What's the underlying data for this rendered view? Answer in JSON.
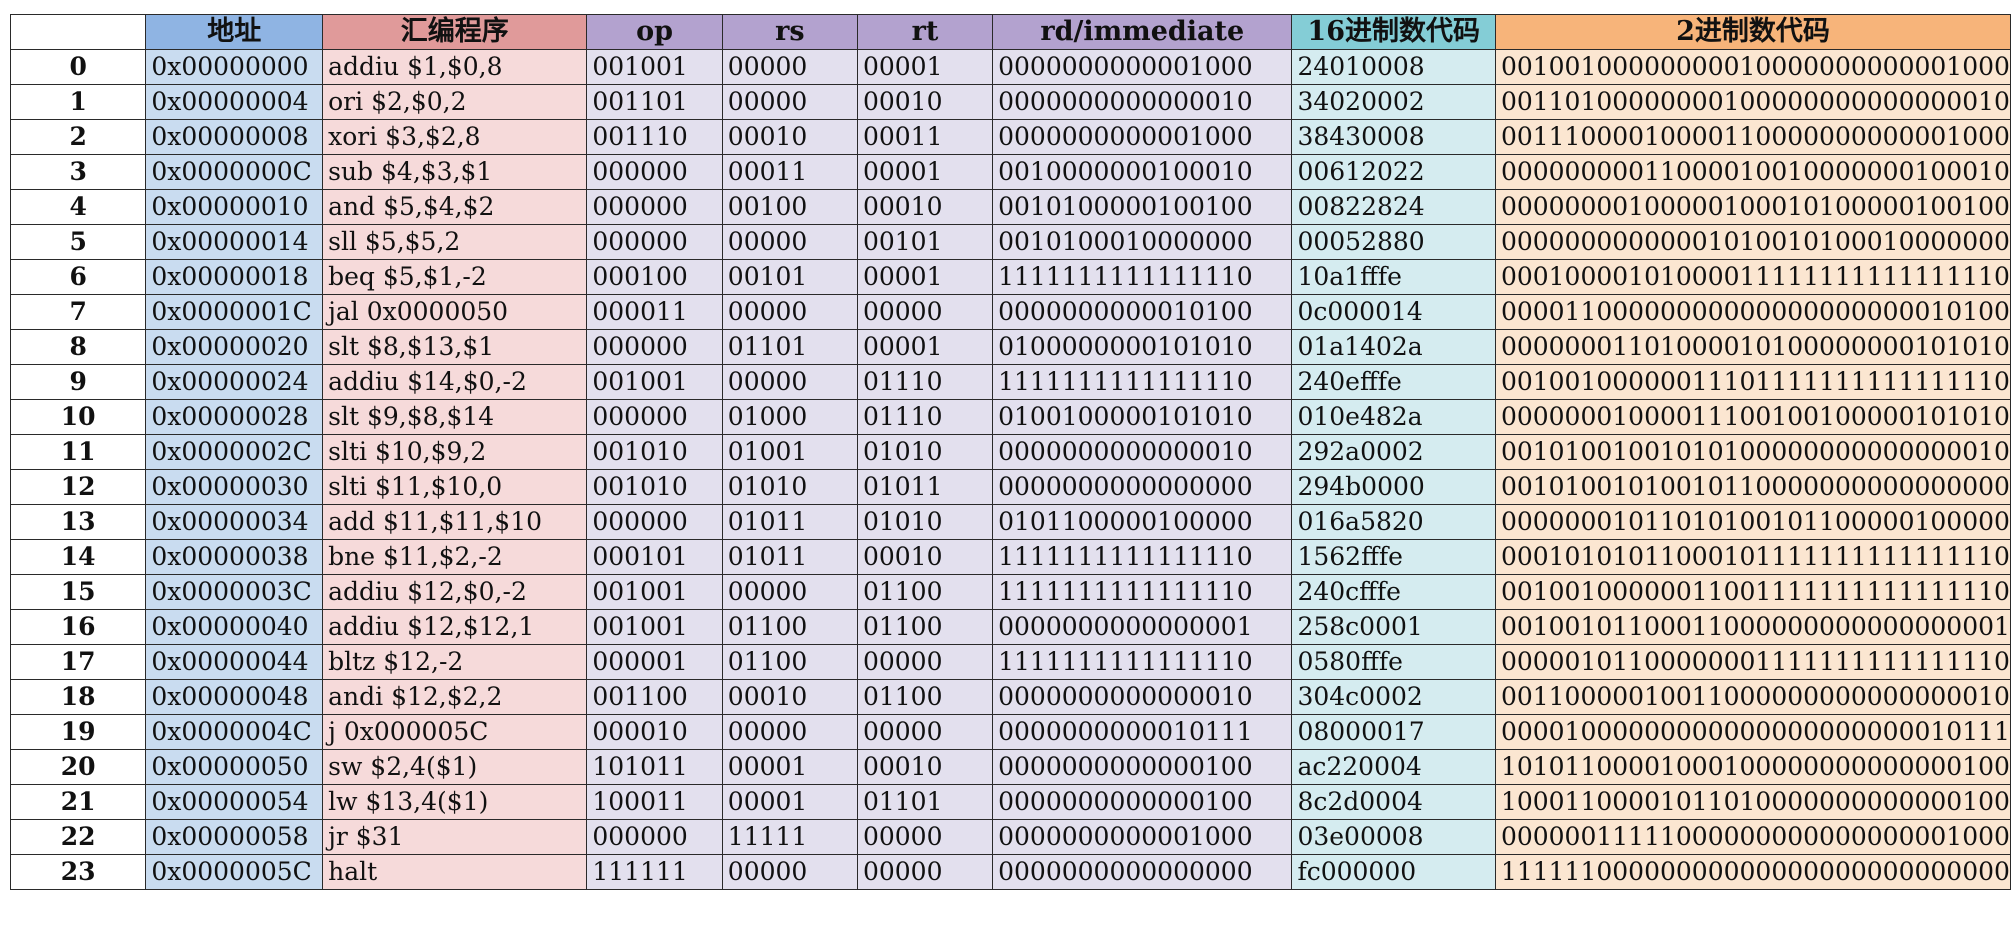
{
  "headers": {
    "index": "",
    "address": "地址",
    "assembly": "汇编程序",
    "op": "op",
    "rs": "rs",
    "rt": "rt",
    "rd_immediate": "rd/immediate",
    "hex_code": "16进制数代码",
    "bin_code": "2进制数代码"
  },
  "colors": {
    "address_header": "#8fb4e3",
    "assembly_header": "#e09a9a",
    "field_header": "#b3a2cf",
    "hex_header": "#84cdd6",
    "bin_header": "#f7b47a"
  },
  "rows": [
    {
      "idx": "0",
      "addr": "0x00000000",
      "asm": "addiu  $1,$0,8",
      "op": "001001",
      "rs": "00000",
      "rt": "00001",
      "imm": "0000000000001000",
      "hex": "24010008",
      "bin": "00100100000000010000000000001000"
    },
    {
      "idx": "1",
      "addr": "0x00000004",
      "asm": "ori  $2,$0,2",
      "op": "001101",
      "rs": "00000",
      "rt": "00010",
      "imm": "0000000000000010",
      "hex": "34020002",
      "bin": "00110100000000100000000000000010"
    },
    {
      "idx": "2",
      "addr": "0x00000008",
      "asm": "xori  $3,$2,8",
      "op": "001110",
      "rs": "00010",
      "rt": "00011",
      "imm": "0000000000001000",
      "hex": "38430008",
      "bin": "00111000010000110000000000001000"
    },
    {
      "idx": "3",
      "addr": "0x0000000C",
      "asm": "sub  $4,$3,$1",
      "op": "000000",
      "rs": "00011",
      "rt": "00001",
      "imm": "0010000000100010",
      "hex": "00612022",
      "bin": "00000000011000010010000000100010"
    },
    {
      "idx": "4",
      "addr": "0x00000010",
      "asm": "and  $5,$4,$2",
      "op": "000000",
      "rs": "00100",
      "rt": "00010",
      "imm": "0010100000100100",
      "hex": "00822824",
      "bin": "00000000100000100010100000100100"
    },
    {
      "idx": "5",
      "addr": "0x00000014",
      "asm": "sll   $5,$5,2",
      "op": "000000",
      "rs": "00000",
      "rt": "00101",
      "imm": "0010100010000000",
      "hex": "00052880",
      "bin": "00000000000001010010100010000000"
    },
    {
      "idx": "6",
      "addr": "0x00000018",
      "asm": "beq  $5,$1,-2",
      "op": "000100",
      "rs": "00101",
      "rt": "00001",
      "imm": "1111111111111110",
      "hex": "10a1fffe",
      "bin": "00010000101000011111111111111110"
    },
    {
      "idx": "7",
      "addr": "0x0000001C",
      "asm": "jal  0x0000050",
      "op": "000011",
      "rs": "00000",
      "rt": "00000",
      "imm": "0000000000010100",
      "hex": "0c000014",
      "bin": "00001100000000000000000000010100"
    },
    {
      "idx": "8",
      "addr": "0x00000020",
      "asm": "slt  $8,$13,$1",
      "op": "000000",
      "rs": "01101",
      "rt": "00001",
      "imm": "0100000000101010",
      "hex": "01a1402a",
      "bin": "00000001101000010100000000101010"
    },
    {
      "idx": "9",
      "addr": "0x00000024",
      "asm": "addiu  $14,$0,-2",
      "op": "001001",
      "rs": "00000",
      "rt": "01110",
      "imm": "1111111111111110",
      "hex": "240efffe",
      "bin": "00100100000011101111111111111110"
    },
    {
      "idx": "10",
      "addr": "0x00000028",
      "asm": "slt  $9,$8,$14",
      "op": "000000",
      "rs": "01000",
      "rt": "01110",
      "imm": "0100100000101010",
      "hex": "010e482a",
      "bin": "00000001000011100100100000101010"
    },
    {
      "idx": "11",
      "addr": "0x0000002C",
      "asm": "slti  $10,$9,2",
      "op": "001010",
      "rs": "01001",
      "rt": "01010",
      "imm": "0000000000000010",
      "hex": "292a0002",
      "bin": "00101001001010100000000000000010"
    },
    {
      "idx": "12",
      "addr": "0x00000030",
      "asm": "slti  $11,$10,0",
      "op": "001010",
      "rs": "01010",
      "rt": "01011",
      "imm": "0000000000000000",
      "hex": "294b0000",
      "bin": "00101001010010110000000000000000"
    },
    {
      "idx": "13",
      "addr": "0x00000034",
      "asm": "add  $11,$11,$10",
      "op": "000000",
      "rs": "01011",
      "rt": "01010",
      "imm": "0101100000100000",
      "hex": "016a5820",
      "bin": "00000001011010100101100000100000"
    },
    {
      "idx": "14",
      "addr": "0x00000038",
      "asm": "bne  $11,$2,-2",
      "op": "000101",
      "rs": "01011",
      "rt": "00010",
      "imm": "1111111111111110",
      "hex": "1562fffe",
      "bin": "00010101011000101111111111111110"
    },
    {
      "idx": "15",
      "addr": "0x0000003C",
      "asm": "addiu  $12,$0,-2",
      "op": "001001",
      "rs": "00000",
      "rt": "01100",
      "imm": "1111111111111110",
      "hex": "240cfffe",
      "bin": "00100100000011001111111111111110"
    },
    {
      "idx": "16",
      "addr": "0x00000040",
      "asm": "addiu  $12,$12,1",
      "op": "001001",
      "rs": "01100",
      "rt": "01100",
      "imm": "0000000000000001",
      "hex": "258c0001",
      "bin": "00100101100011000000000000000001"
    },
    {
      "idx": "17",
      "addr": "0x00000044",
      "asm": "bltz  $12,-2",
      "op": "000001",
      "rs": "01100",
      "rt": "00000",
      "imm": "1111111111111110",
      "hex": "0580fffe",
      "bin": "00000101100000001111111111111110"
    },
    {
      "idx": "18",
      "addr": "0x00000048",
      "asm": "andi  $12,$2,2",
      "op": "001100",
      "rs": "00010",
      "rt": "01100",
      "imm": "0000000000000010",
      "hex": "304c0002",
      "bin": "00110000010011000000000000000010"
    },
    {
      "idx": "19",
      "addr": "0x0000004C",
      "asm": "j  0x000005C",
      "op": "000010",
      "rs": "00000",
      "rt": "00000",
      "imm": "0000000000010111",
      "hex": "08000017",
      "bin": "00001000000000000000000000010111"
    },
    {
      "idx": "20",
      "addr": "0x00000050",
      "asm": "sw  $2,4($1)",
      "op": "101011",
      "rs": "00001",
      "rt": "00010",
      "imm": "0000000000000100",
      "hex": "ac220004",
      "bin": "10101100001000100000000000000100"
    },
    {
      "idx": "21",
      "addr": "0x00000054",
      "asm": "lw  $13,4($1)",
      "op": "100011",
      "rs": "00001",
      "rt": "01101",
      "imm": "0000000000000100",
      "hex": "8c2d0004",
      "bin": "10001100001011010000000000000100"
    },
    {
      "idx": "22",
      "addr": "0x00000058",
      "asm": "jr  $31",
      "op": "000000",
      "rs": "11111",
      "rt": "00000",
      "imm": "0000000000001000",
      "hex": "03e00008",
      "bin": "00000011111000000000000000001000"
    },
    {
      "idx": "23",
      "addr": "0x0000005C",
      "asm": "halt",
      "op": "111111",
      "rs": "00000",
      "rt": "00000",
      "imm": "0000000000000000",
      "hex": "fc000000",
      "bin": "11111100000000000000000000000000"
    }
  ]
}
